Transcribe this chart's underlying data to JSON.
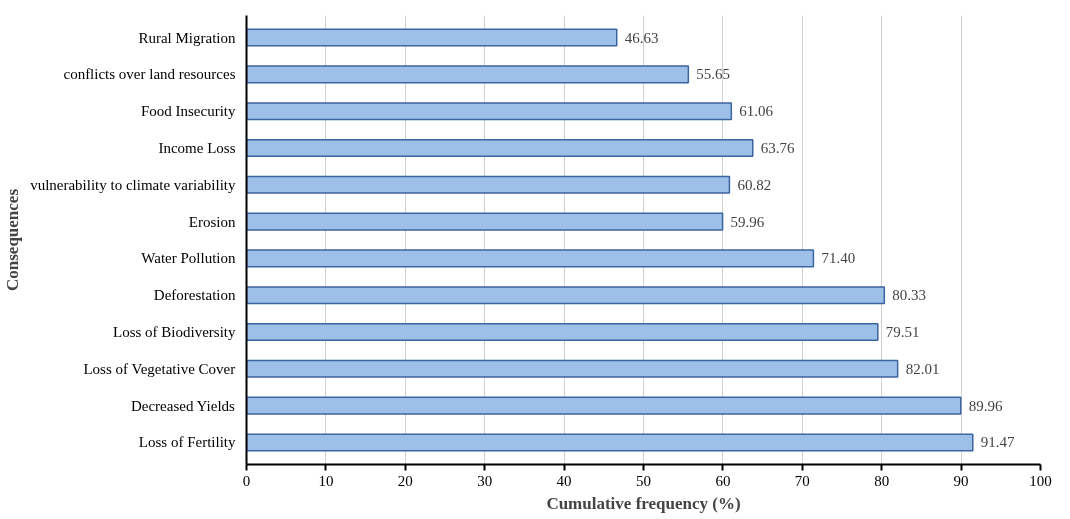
{
  "chart_data": {
    "type": "bar",
    "orientation": "horizontal",
    "xlabel": "Cumulative frequency (%)",
    "ylabel": "Consequences",
    "categories": [
      "Rural Migration",
      "conflicts over land resources",
      "Food Insecurity",
      "Income Loss",
      "vulnerability to climate variability",
      "Erosion",
      "Water Pollution",
      "Deforestation",
      "Loss of Biodiversity",
      "Loss of Vegetative Cover",
      "Decreased Yields",
      "Loss of Fertility"
    ],
    "values": [
      46.63,
      55.65,
      61.06,
      63.76,
      60.82,
      59.96,
      71.4,
      80.33,
      79.51,
      82.01,
      89.96,
      91.47
    ],
    "value_labels": [
      "46.63",
      "55.65",
      "61.06",
      "63.76",
      "60.82",
      "59.96",
      "71.40",
      "80.33",
      "79.51",
      "82.01",
      "89.96",
      "91.47"
    ],
    "color": "#9dc0e8",
    "xlim": [
      0,
      100
    ],
    "xticks": [
      0,
      10,
      20,
      30,
      40,
      50,
      60,
      70,
      80,
      90,
      100
    ],
    "grid": "x"
  }
}
